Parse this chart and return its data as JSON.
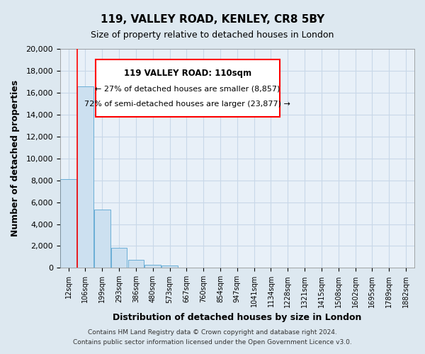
{
  "title": "119, VALLEY ROAD, KENLEY, CR8 5BY",
  "subtitle": "Size of property relative to detached houses in London",
  "bar_color": "#cce0f0",
  "bar_edge_color": "#6aaed6",
  "xlabel": "Distribution of detached houses by size in London",
  "ylabel": "Number of detached properties",
  "ylim": [
    0,
    20000
  ],
  "yticks": [
    0,
    2000,
    4000,
    6000,
    8000,
    10000,
    12000,
    14000,
    16000,
    18000,
    20000
  ],
  "categories": [
    "12sqm",
    "106sqm",
    "199sqm",
    "293sqm",
    "386sqm",
    "480sqm",
    "573sqm",
    "667sqm",
    "760sqm",
    "854sqm",
    "947sqm",
    "1041sqm",
    "1134sqm",
    "1228sqm",
    "1321sqm",
    "1415sqm",
    "1508sqm",
    "1602sqm",
    "1695sqm",
    "1789sqm",
    "1882sqm"
  ],
  "values": [
    8100,
    16600,
    5300,
    1820,
    750,
    270,
    230,
    0,
    0,
    0,
    0,
    0,
    0,
    0,
    0,
    0,
    0,
    0,
    0,
    0,
    0
  ],
  "property_line_x": 0.5,
  "annotation_title": "119 VALLEY ROAD: 110sqm",
  "annotation_line1": "← 27% of detached houses are smaller (8,857)",
  "annotation_line2": "72% of semi-detached houses are larger (23,877) →",
  "footer_line1": "Contains HM Land Registry data © Crown copyright and database right 2024.",
  "footer_line2": "Contains public sector information licensed under the Open Government Licence v3.0.",
  "background_color": "#dde8f0",
  "plot_bg_color": "#e8f0f8",
  "grid_color": "#c8d8e8",
  "title_fontsize": 11,
  "subtitle_fontsize": 9
}
